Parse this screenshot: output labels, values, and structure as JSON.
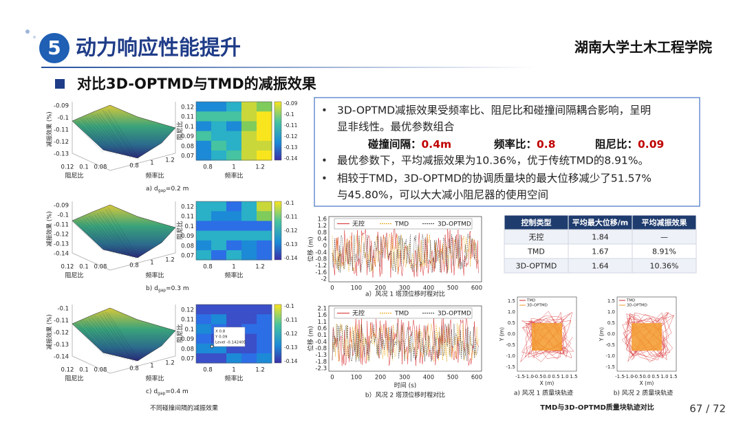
{
  "header": {
    "number": "5",
    "title": "动力响应性能提升",
    "logo": "湖南大学土木工程学院"
  },
  "subtitle": "对比3D-OPTMD与TMD的减振效果",
  "bullets": [
    {
      "lines": [
        "3D-OPTMD减振效果受频率比、阻尼比和碰撞间隔耦合影响，呈明",
        "显非线性。最优参数组合"
      ]
    },
    {
      "lines": [
        "最优参数下，平均减振效果为10.36%，优于传统TMD的8.91%。"
      ]
    },
    {
      "lines": [
        "相较于TMD，3D-OPTMD的协调质量块的最大位移减少了51.57%",
        "与45.80%，可以大大减小阻尼器的使用空间"
      ]
    }
  ],
  "params": [
    {
      "label": "碰撞间隔：",
      "value": "0.4m"
    },
    {
      "label": "频率比：",
      "value": "0.8"
    },
    {
      "label": "阻尼比：",
      "value": "0.09"
    }
  ],
  "table": {
    "header": [
      "控制类型",
      "平均最大位移/m",
      "平均减振效果"
    ],
    "rows": [
      [
        "无控",
        "1.84",
        "—"
      ],
      [
        "TMD",
        "1.67",
        "8.91%"
      ],
      [
        "3D-OPTMD",
        "1.64",
        "10.36%"
      ]
    ]
  },
  "surface_plots": [
    {
      "zlabel": "减振效果 (%)",
      "xlabel": "阻尼比",
      "ylabel": "频率比",
      "zticks": [
        "-0.09",
        "-0.1",
        "-0.11",
        "-0.12",
        "-0.13"
      ],
      "xticks": [
        "0.12",
        "0.1",
        "0.08"
      ],
      "yticks": [
        "0.8",
        "1",
        "1.2"
      ],
      "heat_ylabel": "阻尼比",
      "heat_xlabel": "频率比",
      "heat_yticks": [
        "0.12",
        "0.11",
        "0.1",
        "0.09",
        "0.08",
        "0.07"
      ],
      "heat_xticks": [
        "0.8",
        "1",
        "1.2"
      ],
      "cbar_ticks": [
        "-0.09",
        "-0.1",
        "-0.11",
        "-0.12",
        "-0.13",
        "-0.14"
      ],
      "caption": "a)  d",
      "caption_sub": "gap",
      "caption_value": "=0.2 m"
    },
    {
      "zlabel": "减振效果 (%)",
      "xlabel": "阻尼比",
      "ylabel": "频率比",
      "zticks": [
        "-0.09",
        "-0.1",
        "-0.11",
        "-0.12",
        "-0.13",
        "-0.14"
      ],
      "xticks": [
        "0.12",
        "0.1",
        "0.08"
      ],
      "yticks": [
        "0.8",
        "1",
        "1.2"
      ],
      "heat_ylabel": "阻尼比",
      "heat_xlabel": "频率比",
      "heat_yticks": [
        "0.12",
        "0.11",
        "0.1",
        "0.09",
        "0.08",
        "0.07"
      ],
      "heat_xticks": [
        "0.8",
        "1",
        "1.2"
      ],
      "cbar_ticks": [
        "-0.1",
        "-0.11",
        "-0.12",
        "-0.13",
        "-0.14"
      ],
      "caption": "b)  d",
      "caption_sub": "gap",
      "caption_value": "=0.3 m"
    },
    {
      "zlabel": "减振效果 (%)",
      "xlabel": "阻尼比",
      "ylabel": "频率比",
      "zticks": [
        "-0.1",
        "-0.11",
        "-0.12",
        "-0.13",
        "-0.14"
      ],
      "xticks": [
        "0.12",
        "0.1",
        "0.08"
      ],
      "yticks": [
        "0.8",
        "1",
        "1.2"
      ],
      "heat_ylabel": "阻尼比",
      "heat_xlabel": "频率比",
      "heat_yticks": [
        "0.12",
        "0.11",
        "0.1",
        "0.09",
        "0.08",
        "0.07"
      ],
      "heat_xticks": [
        "0.8",
        "1",
        "1.2"
      ],
      "cbar_ticks": [
        "-0.1",
        "-0.11",
        "-0.12",
        "-0.13",
        "-0.14"
      ],
      "caption": "c)  d",
      "caption_sub": "gap",
      "caption_value": "=0.4 m",
      "tooltip": [
        "X 0.8",
        "Y 0.09",
        "Level -0.142405"
      ]
    }
  ],
  "surface_note": "不同碰撞间隔的减振效果",
  "time_plots": [
    {
      "legend": [
        "无控",
        "TMD",
        "3D-OPTMD"
      ],
      "ylabel": "位移 (m)",
      "yticks": [
        "1.6",
        "1.2",
        "0.8",
        "0.4",
        "0",
        "-0.4",
        "-0.8",
        "-1.2",
        "-1.6",
        "-2"
      ],
      "xticks": [
        "0",
        "100",
        "200",
        "300",
        "400",
        "500",
        "600"
      ],
      "caption": "a）风况 1 塔顶位移时程对比"
    },
    {
      "legend": [
        "无控",
        "TMD",
        "3D-OPTMD"
      ],
      "ylabel": "位移 (m)",
      "xlabel": "时间 (s)",
      "yticks": [
        "2.1",
        "1.6",
        "1.1",
        "0.6",
        "0.1",
        "-0.4",
        "-0.8",
        "-1.3",
        "-1.8",
        "-2.3"
      ],
      "xticks": [
        "0",
        "100",
        "200",
        "300",
        "400",
        "500",
        "600"
      ],
      "caption": "b）风况 2 塔顶位移时程对比"
    }
  ],
  "trajectory_plots": [
    {
      "legend": [
        "TMD",
        "3D-OPTMD"
      ],
      "xlabel": "X (m)",
      "ylabel": "Y (m)",
      "yticks": [
        "1.5",
        "1.0",
        "0.5",
        "0.0",
        "-0.5",
        "-1.0",
        "-1.5"
      ],
      "xticks": [
        "-1.5",
        "-1.0",
        "-0.5",
        "0.0",
        "0.5",
        "1.0",
        "1.5"
      ],
      "caption": "a) 风况 1 质量块轨迹"
    },
    {
      "legend": [
        "TMD",
        "3D-OPTMD"
      ],
      "xlabel": "X (m)",
      "ylabel": "Y (m)",
      "yticks": [
        "1.5",
        "1.0",
        "0.5",
        "0.0",
        "-0.5",
        "-1.0",
        "-1.5"
      ],
      "xticks": [
        "-1.5",
        "-1.0",
        "-0.5",
        "0.0",
        "0.5",
        "1.0",
        "1.5"
      ],
      "caption": "b) 风况 2 质量块轨迹"
    }
  ],
  "trajectory_caption": "TMD与3D-OPTMD质量块轨迹对比",
  "page": "67 / 72"
}
